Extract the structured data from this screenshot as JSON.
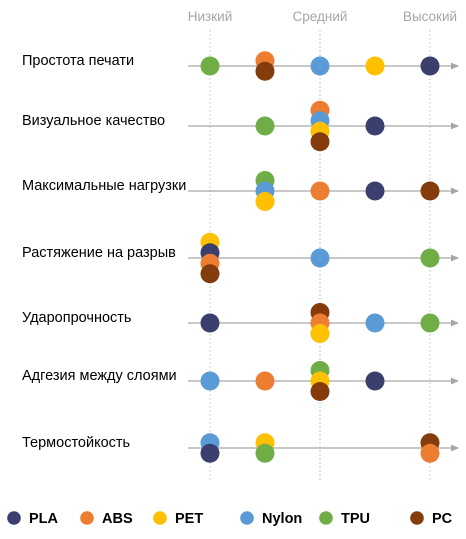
{
  "chart_data": {
    "type": "scatter",
    "levels": [
      "Низкий",
      "Средний",
      "Высокий"
    ],
    "level_positions": [
      0,
      1,
      2
    ],
    "colors": {
      "PLA": "#3b3f6e",
      "ABS": "#ed7d31",
      "PET": "#ffc000",
      "Nylon": "#5b9bd5",
      "TPU": "#70ad47",
      "PC": "#843c0c"
    },
    "series_order": [
      "PLA",
      "ABS",
      "PET",
      "Nylon",
      "TPU",
      "PC"
    ],
    "rows": [
      {
        "label": "Простота печати",
        "points": [
          {
            "series": "TPU",
            "x": 0.0
          },
          {
            "series": "ABS",
            "x": 0.5
          },
          {
            "series": "PC",
            "x": 0.5
          },
          {
            "series": "Nylon",
            "x": 1.0
          },
          {
            "series": "PET",
            "x": 1.5
          },
          {
            "series": "PLA",
            "x": 2.0
          }
        ]
      },
      {
        "label": "Визуальное качество",
        "points": [
          {
            "series": "TPU",
            "x": 0.5
          },
          {
            "series": "ABS",
            "x": 1.0
          },
          {
            "series": "Nylon",
            "x": 1.0
          },
          {
            "series": "PET",
            "x": 1.0
          },
          {
            "series": "PC",
            "x": 1.0
          },
          {
            "series": "PLA",
            "x": 1.5
          }
        ]
      },
      {
        "label": "Максимальные нагрузки",
        "points": [
          {
            "series": "TPU",
            "x": 0.5
          },
          {
            "series": "Nylon",
            "x": 0.5
          },
          {
            "series": "PET",
            "x": 0.5
          },
          {
            "series": "ABS",
            "x": 1.0
          },
          {
            "series": "PLA",
            "x": 1.5
          },
          {
            "series": "PC",
            "x": 2.0
          }
        ]
      },
      {
        "label": "Растяжение на разрыв",
        "points": [
          {
            "series": "PET",
            "x": 0.0
          },
          {
            "series": "PLA",
            "x": 0.0
          },
          {
            "series": "ABS",
            "x": 0.0
          },
          {
            "series": "PC",
            "x": 0.0
          },
          {
            "series": "Nylon",
            "x": 1.0
          },
          {
            "series": "TPU",
            "x": 2.0
          }
        ]
      },
      {
        "label": "Ударопрочность",
        "points": [
          {
            "series": "PLA",
            "x": 0.0
          },
          {
            "series": "PC",
            "x": 1.0
          },
          {
            "series": "ABS",
            "x": 1.0
          },
          {
            "series": "PET",
            "x": 1.0
          },
          {
            "series": "Nylon",
            "x": 1.5
          },
          {
            "series": "TPU",
            "x": 2.0
          }
        ]
      },
      {
        "label": "Адгезия между слоями",
        "points": [
          {
            "series": "Nylon",
            "x": 0.0
          },
          {
            "series": "ABS",
            "x": 0.5
          },
          {
            "series": "TPU",
            "x": 1.0
          },
          {
            "series": "PET",
            "x": 1.0
          },
          {
            "series": "PC",
            "x": 1.0
          },
          {
            "series": "PLA",
            "x": 1.5
          }
        ]
      },
      {
        "label": "Термостойкость",
        "points": [
          {
            "series": "Nylon",
            "x": 0.0
          },
          {
            "series": "PLA",
            "x": 0.0
          },
          {
            "series": "PET",
            "x": 0.5
          },
          {
            "series": "TPU",
            "x": 0.5
          },
          {
            "series": "PC",
            "x": 2.0
          },
          {
            "series": "ABS",
            "x": 2.0
          }
        ]
      }
    ],
    "legend": [
      "PLA",
      "ABS",
      "PET",
      "Nylon",
      "TPU",
      "PC"
    ],
    "legend_position": "bottom",
    "title": "",
    "xlabel": "",
    "ylabel": ""
  }
}
